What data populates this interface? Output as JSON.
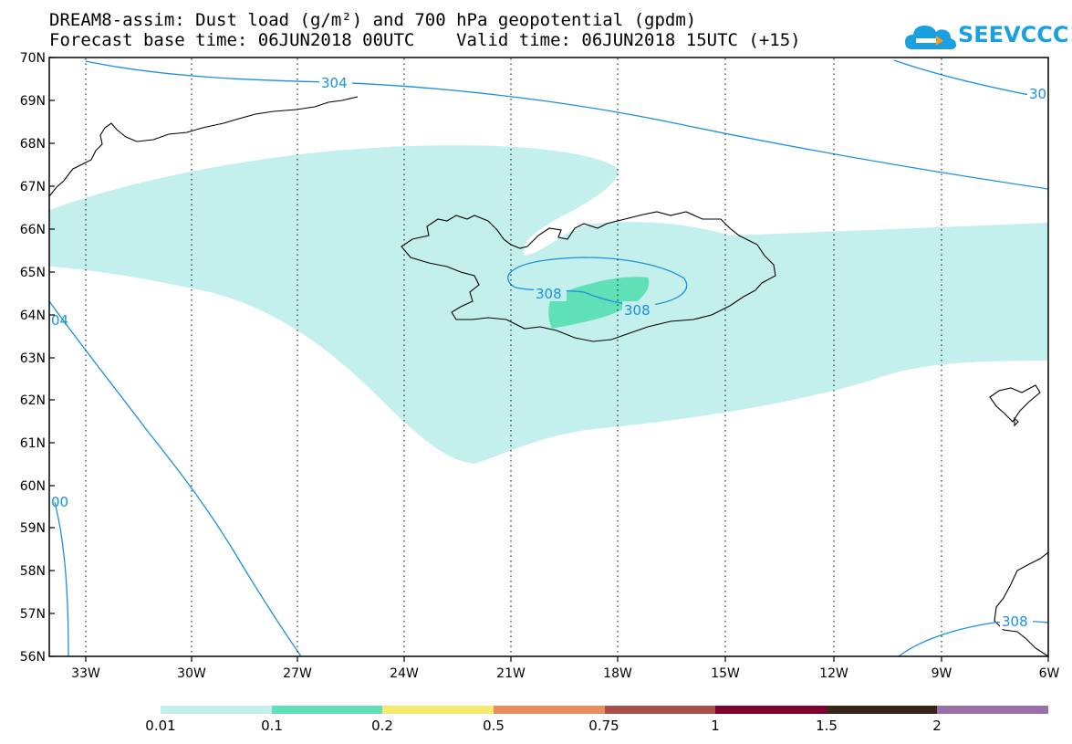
{
  "header": {
    "title_line1": "DREAM8-assim: Dust load (g/m²) and 700 hPa geopotential (gpdm)",
    "title_line2": "Forecast base time: 06JUN2018 00UTC    Valid time: 06JUN2018 15UTC (+15)"
  },
  "logo": {
    "text": "SEEVCCC",
    "icon": "cloud-logo-icon",
    "color": "#1aa0e0"
  },
  "map": {
    "lat_labels": [
      "70N",
      "69N",
      "68N",
      "67N",
      "66N",
      "65N",
      "64N",
      "63N",
      "62N",
      "61N",
      "60N",
      "59N",
      "58N",
      "57N",
      "56N"
    ],
    "lon_labels": [
      "33W",
      "30W",
      "27W",
      "24W",
      "21W",
      "18W",
      "15W",
      "12W",
      "9W",
      "6W"
    ],
    "lat_range": [
      56,
      70
    ],
    "lon_range": [
      -34.2,
      -6.0
    ],
    "contour_labels": [
      "304",
      "30",
      "308",
      "308",
      "308",
      "04",
      "00"
    ],
    "contour_color": "#1a90e0",
    "shading_low_color": "#c3f0ec",
    "shading_mid_color": "#5fe0b6"
  },
  "colorbar": {
    "colors": [
      "#c3f0ec",
      "#5fe0b6",
      "#f5e96e",
      "#e88c60",
      "#a8504a",
      "#800030",
      "#3a2418",
      "#9a6ea6"
    ],
    "labels": [
      "0.01",
      "0.1",
      "0.2",
      "0.5",
      "0.75",
      "1",
      "1.5",
      "2"
    ]
  }
}
